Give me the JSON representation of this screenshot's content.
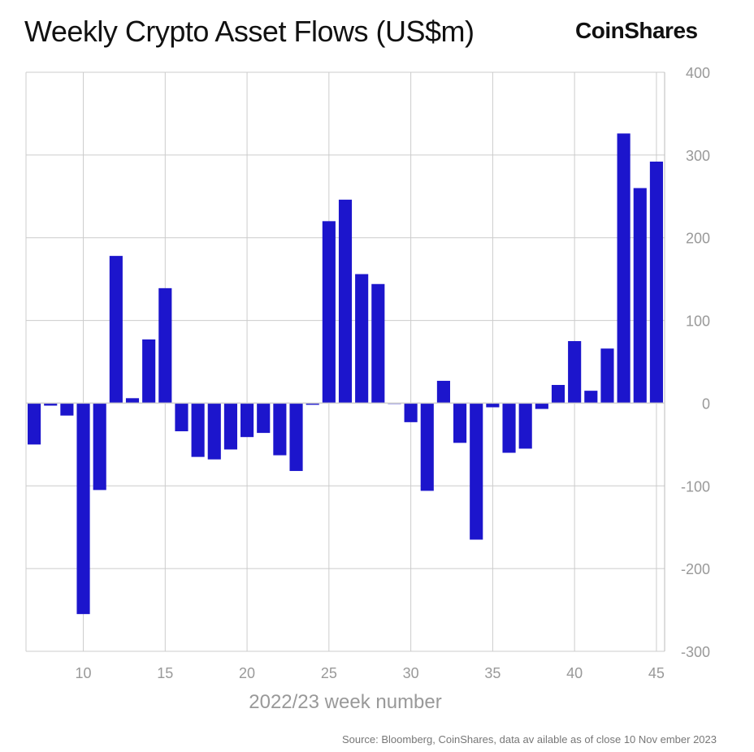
{
  "header": {
    "title": "Weekly Crypto Asset Flows (US$m)",
    "brand": "CoinShares"
  },
  "footer": {
    "source": "Source: Bloomberg, CoinShares, data av ailable as of close 10 Nov ember 2023"
  },
  "chart_data": {
    "type": "bar",
    "x": [
      7,
      8,
      9,
      10,
      11,
      12,
      13,
      14,
      15,
      16,
      17,
      18,
      19,
      20,
      21,
      22,
      23,
      24,
      25,
      26,
      27,
      28,
      29,
      30,
      31,
      32,
      33,
      34,
      35,
      36,
      37,
      38,
      39,
      40,
      41,
      42,
      43,
      44,
      45
    ],
    "values": [
      -50,
      -3,
      -15,
      -255,
      -105,
      178,
      6,
      77,
      139,
      -34,
      -65,
      -68,
      -56,
      -41,
      -36,
      -63,
      -82,
      -2,
      220,
      246,
      156,
      144,
      -1,
      -23,
      -106,
      27,
      -48,
      -165,
      -5,
      -60,
      -55,
      -7,
      22,
      75,
      15,
      66,
      326,
      260,
      292
    ],
    "xlabel": "2022/23 week number",
    "ylabel": "",
    "xticks": [
      10,
      15,
      20,
      25,
      30,
      35,
      40,
      45
    ],
    "yticks": [
      400,
      300,
      200,
      100,
      0,
      -100,
      -200,
      -300
    ],
    "xlim": [
      6.5,
      45.5
    ],
    "ylim": [
      -300,
      400
    ],
    "grid": true,
    "bar_color": "#1c15cc",
    "grid_color": "#cccccc",
    "y_axis_side": "right"
  }
}
